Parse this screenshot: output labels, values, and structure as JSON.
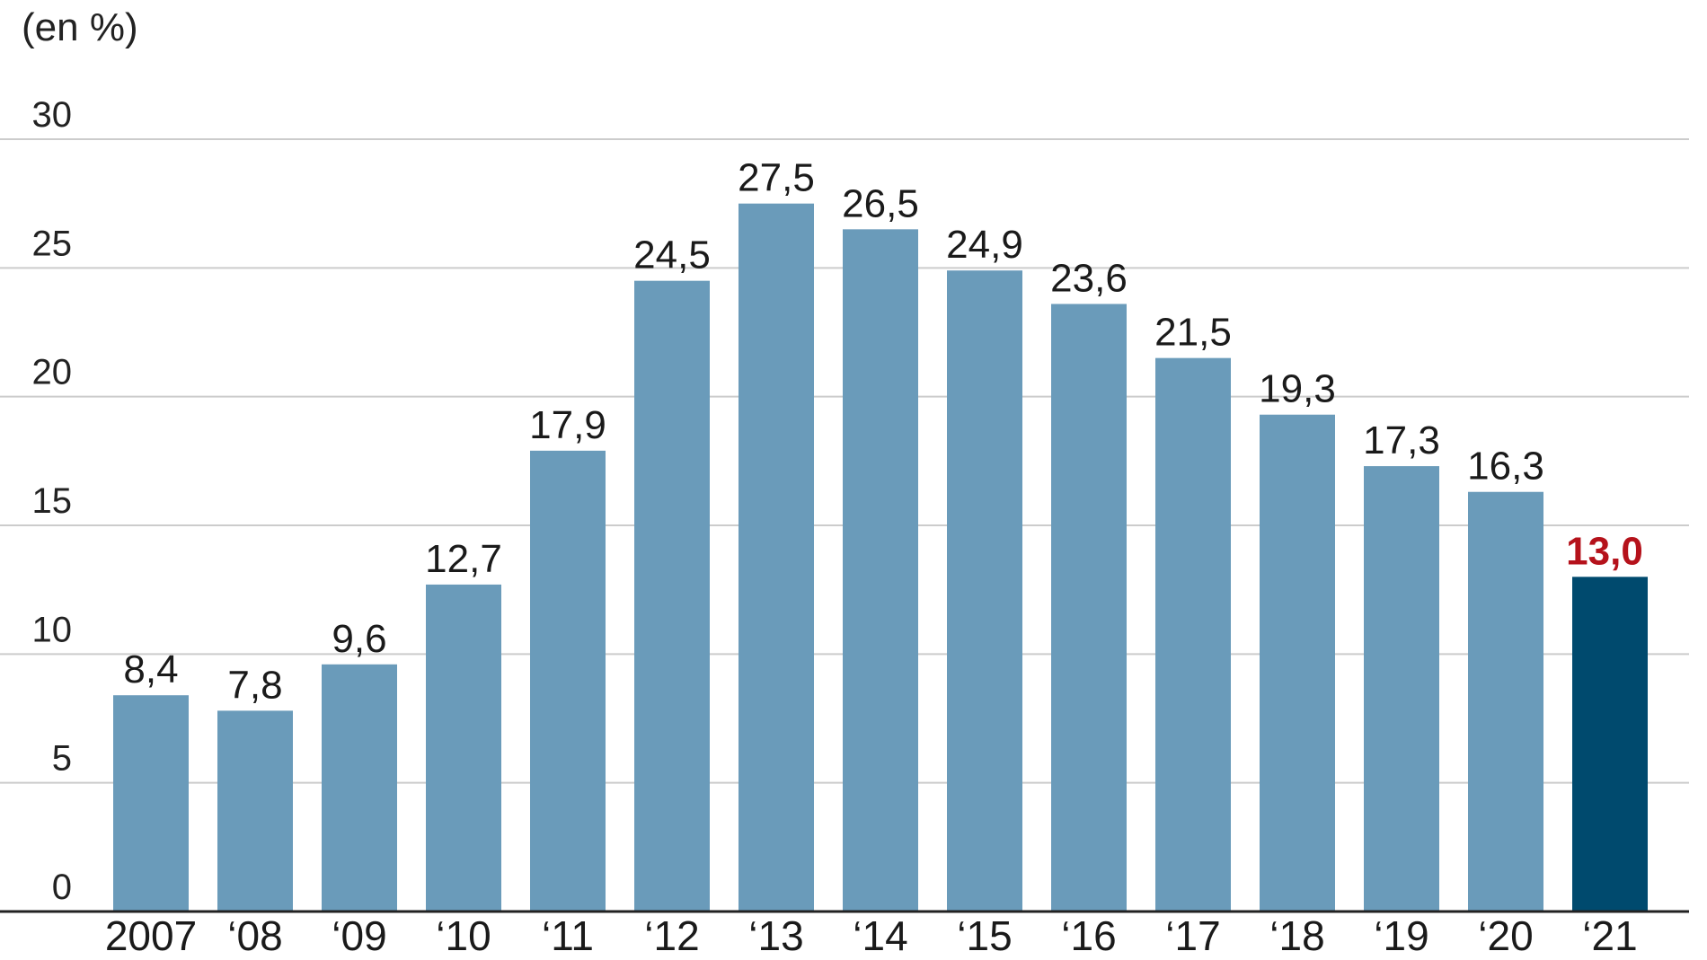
{
  "chart_data": {
    "type": "bar",
    "unit_label": "(en %)",
    "categories": [
      "2007",
      "‘08",
      "‘09",
      "‘10",
      "‘11",
      "‘12",
      "‘13",
      "‘14",
      "‘15",
      "‘16",
      "‘17",
      "‘18",
      "‘19",
      "‘20",
      "‘21"
    ],
    "values": [
      8.4,
      7.8,
      9.6,
      12.7,
      17.9,
      24.5,
      27.5,
      26.5,
      24.9,
      23.6,
      21.5,
      19.3,
      17.3,
      16.3,
      13.0
    ],
    "value_labels": [
      "8,4",
      "7,8",
      "9,6",
      "12,7",
      "17,9",
      "24,5",
      "27,5",
      "26,5",
      "24,9",
      "23,6",
      "21,5",
      "19,3",
      "17,3",
      "16,3",
      "13,0"
    ],
    "highlight_index": 14,
    "yticks": [
      0,
      5,
      10,
      15,
      20,
      25,
      30
    ],
    "ylim": [
      0,
      30
    ],
    "grid": true,
    "colors": {
      "bar": "#6a9bba",
      "highlight_bar": "#004a6e",
      "highlight_label": "#b5121b",
      "grid": "#cccccc",
      "axis": "#222222"
    }
  }
}
